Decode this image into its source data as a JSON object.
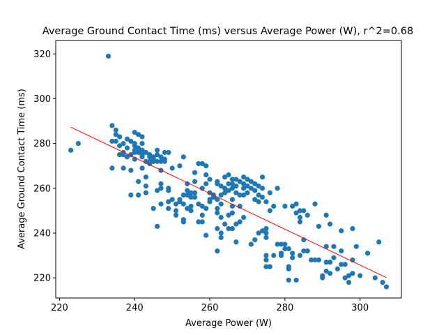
{
  "chart_data": {
    "type": "scatter",
    "title": "Average Ground Contact Time (ms) versus Average Power (W), r^2=0.68",
    "xlabel": "Average Power (W)",
    "ylabel": "Average Ground Contact Time (ms)",
    "xlim": [
      219,
      311
    ],
    "ylim": [
      211,
      326
    ],
    "xticks": [
      220,
      240,
      260,
      280,
      300
    ],
    "yticks": [
      220,
      240,
      260,
      280,
      300,
      320
    ],
    "grid": false,
    "colors": {
      "points": "#1f77b4",
      "fit_line": "#ff0000"
    },
    "fit_line": {
      "x": [
        223,
        307
      ],
      "y": [
        287.3,
        220.1
      ]
    },
    "points": [
      [
        233,
        319
      ],
      [
        223,
        277
      ],
      [
        225,
        280
      ],
      [
        234,
        269
      ],
      [
        234,
        288
      ],
      [
        234,
        281
      ],
      [
        235,
        286
      ],
      [
        235,
        284
      ],
      [
        235,
        281
      ],
      [
        236,
        283
      ],
      [
        236,
        279
      ],
      [
        236,
        275
      ],
      [
        237,
        276
      ],
      [
        237,
        275
      ],
      [
        237,
        269
      ],
      [
        237,
        280
      ],
      [
        238,
        274
      ],
      [
        238,
        278
      ],
      [
        238,
        282
      ],
      [
        239,
        275
      ],
      [
        239,
        281
      ],
      [
        239,
        257
      ],
      [
        239,
        268
      ],
      [
        240,
        280
      ],
      [
        240,
        279
      ],
      [
        240,
        276
      ],
      [
        240,
        285
      ],
      [
        240,
        273
      ],
      [
        240,
        277
      ],
      [
        241,
        276
      ],
      [
        241,
        278
      ],
      [
        241,
        284
      ],
      [
        241,
        263
      ],
      [
        241,
        257
      ],
      [
        242,
        280
      ],
      [
        242,
        277
      ],
      [
        242,
        275
      ],
      [
        242,
        283
      ],
      [
        242,
        274
      ],
      [
        242,
        269
      ],
      [
        243,
        272
      ],
      [
        243,
        276
      ],
      [
        243,
        265
      ],
      [
        243,
        261
      ],
      [
        243,
        258
      ],
      [
        244,
        274
      ],
      [
        244,
        272
      ],
      [
        244,
        271
      ],
      [
        244,
        275
      ],
      [
        245,
        273
      ],
      [
        245,
        274
      ],
      [
        245,
        251
      ],
      [
        245,
        272
      ],
      [
        246,
        275
      ],
      [
        246,
        277
      ],
      [
        246,
        272
      ],
      [
        246,
        243
      ],
      [
        246,
        259
      ],
      [
        247,
        268
      ],
      [
        247,
        274
      ],
      [
        247,
        272
      ],
      [
        247,
        262
      ],
      [
        247,
        260
      ],
      [
        247,
        253
      ],
      [
        248,
        276
      ],
      [
        248,
        273
      ],
      [
        248,
        272
      ],
      [
        249,
        276
      ],
      [
        249,
        254
      ],
      [
        249,
        260
      ],
      [
        249,
        259
      ],
      [
        249,
        251
      ],
      [
        250,
        269
      ],
      [
        250,
        255
      ],
      [
        251,
        253
      ],
      [
        251,
        250
      ],
      [
        251,
        248
      ],
      [
        252,
        270
      ],
      [
        252,
        255
      ],
      [
        252,
        254
      ],
      [
        253,
        274
      ],
      [
        253,
        257
      ],
      [
        253,
        246
      ],
      [
        253,
        245
      ],
      [
        253,
        253
      ],
      [
        254,
        262
      ],
      [
        254,
        259
      ],
      [
        254,
        257
      ],
      [
        254,
        251
      ],
      [
        255,
        258
      ],
      [
        255,
        256
      ],
      [
        255,
        252
      ],
      [
        255,
        250
      ],
      [
        256,
        263
      ],
      [
        256,
        267
      ],
      [
        256,
        256
      ],
      [
        256,
        258
      ],
      [
        257,
        271
      ],
      [
        257,
        253
      ],
      [
        257,
        245
      ],
      [
        258,
        271
      ],
      [
        258,
        252
      ],
      [
        258,
        260
      ],
      [
        258,
        248
      ],
      [
        258,
        245
      ],
      [
        259,
        270
      ],
      [
        259,
        266
      ],
      [
        259,
        262
      ],
      [
        259,
        251
      ],
      [
        259,
        239
      ],
      [
        260,
        264
      ],
      [
        260,
        258
      ],
      [
        260,
        255
      ],
      [
        260,
        254
      ],
      [
        261,
        256
      ],
      [
        261,
        257
      ],
      [
        262,
        263
      ],
      [
        262,
        262
      ],
      [
        262,
        255
      ],
      [
        262,
        251
      ],
      [
        262,
        249
      ],
      [
        262,
        242
      ],
      [
        262,
        232
      ],
      [
        263,
        261
      ],
      [
        263,
        257
      ],
      [
        263,
        253
      ],
      [
        263,
        247
      ],
      [
        263,
        238
      ],
      [
        263,
        240
      ],
      [
        264,
        265
      ],
      [
        264,
        260
      ],
      [
        264,
        258
      ],
      [
        264,
        244
      ],
      [
        265,
        266
      ],
      [
        265,
        262
      ],
      [
        265,
        259
      ],
      [
        265,
        248
      ],
      [
        265,
        242
      ],
      [
        266,
        264
      ],
      [
        266,
        262
      ],
      [
        266,
        260
      ],
      [
        266,
        255
      ],
      [
        266,
        252
      ],
      [
        266,
        249
      ],
      [
        266,
        242
      ],
      [
        267,
        264
      ],
      [
        267,
        261
      ],
      [
        267,
        258
      ],
      [
        267,
        244
      ],
      [
        267,
        236
      ],
      [
        268,
        263
      ],
      [
        268,
        257
      ],
      [
        268,
        252
      ],
      [
        268,
        245
      ],
      [
        269,
        262
      ],
      [
        269,
        265
      ],
      [
        269,
        260
      ],
      [
        269,
        257
      ],
      [
        269,
        247
      ],
      [
        270,
        264
      ],
      [
        270,
        261
      ],
      [
        270,
        258
      ],
      [
        271,
        260
      ],
      [
        271,
        263
      ],
      [
        271,
        235
      ],
      [
        272,
        262
      ],
      [
        272,
        255
      ],
      [
        272,
        259
      ],
      [
        272,
        237
      ],
      [
        273,
        261
      ],
      [
        273,
        257
      ],
      [
        273,
        254
      ],
      [
        273,
        240
      ],
      [
        274,
        265
      ],
      [
        274,
        260
      ],
      [
        274,
        256
      ],
      [
        274,
        241
      ],
      [
        275,
        254
      ],
      [
        275,
        242
      ],
      [
        275,
        240
      ],
      [
        275,
        238
      ],
      [
        275,
        230
      ],
      [
        275,
        228
      ],
      [
        275,
        225
      ],
      [
        276,
        258
      ],
      [
        276,
        250
      ],
      [
        276,
        225
      ],
      [
        277,
        252
      ],
      [
        277,
        230
      ],
      [
        278,
        260
      ],
      [
        278,
        235
      ],
      [
        279,
        235
      ],
      [
        279,
        231
      ],
      [
        279,
        230
      ],
      [
        280,
        252
      ],
      [
        280,
        233
      ],
      [
        280,
        235
      ],
      [
        281,
        233
      ],
      [
        281,
        225
      ],
      [
        281,
        224
      ],
      [
        281,
        219
      ],
      [
        282,
        252
      ],
      [
        282,
        231
      ],
      [
        282,
        229
      ],
      [
        283,
        253
      ],
      [
        283,
        249
      ],
      [
        283,
        219
      ],
      [
        284,
        250
      ],
      [
        284,
        245
      ],
      [
        284,
        247
      ],
      [
        284,
        230
      ],
      [
        285,
        250
      ],
      [
        285,
        237
      ],
      [
        285,
        232
      ],
      [
        286,
        248
      ],
      [
        286,
        232
      ],
      [
        287,
        228
      ],
      [
        288,
        253
      ],
      [
        288,
        228
      ],
      [
        289,
        243
      ],
      [
        289,
        228
      ],
      [
        290,
        221
      ],
      [
        290,
        220
      ],
      [
        291,
        248
      ],
      [
        291,
        234
      ],
      [
        291,
        227
      ],
      [
        291,
        223
      ],
      [
        292,
        244
      ],
      [
        292,
        227
      ],
      [
        292,
        222
      ],
      [
        293,
        234
      ],
      [
        293,
        229
      ],
      [
        294,
        224
      ],
      [
        295,
        241
      ],
      [
        295,
        232
      ],
      [
        295,
        226
      ],
      [
        296,
        226
      ],
      [
        296,
        220
      ],
      [
        297,
        221
      ],
      [
        297,
        218
      ],
      [
        298,
        242
      ],
      [
        298,
        228
      ],
      [
        298,
        222
      ],
      [
        299,
        234
      ],
      [
        300,
        221
      ],
      [
        302,
        231
      ],
      [
        304,
        220
      ],
      [
        305,
        236
      ],
      [
        306,
        218
      ],
      [
        307,
        216
      ]
    ]
  }
}
